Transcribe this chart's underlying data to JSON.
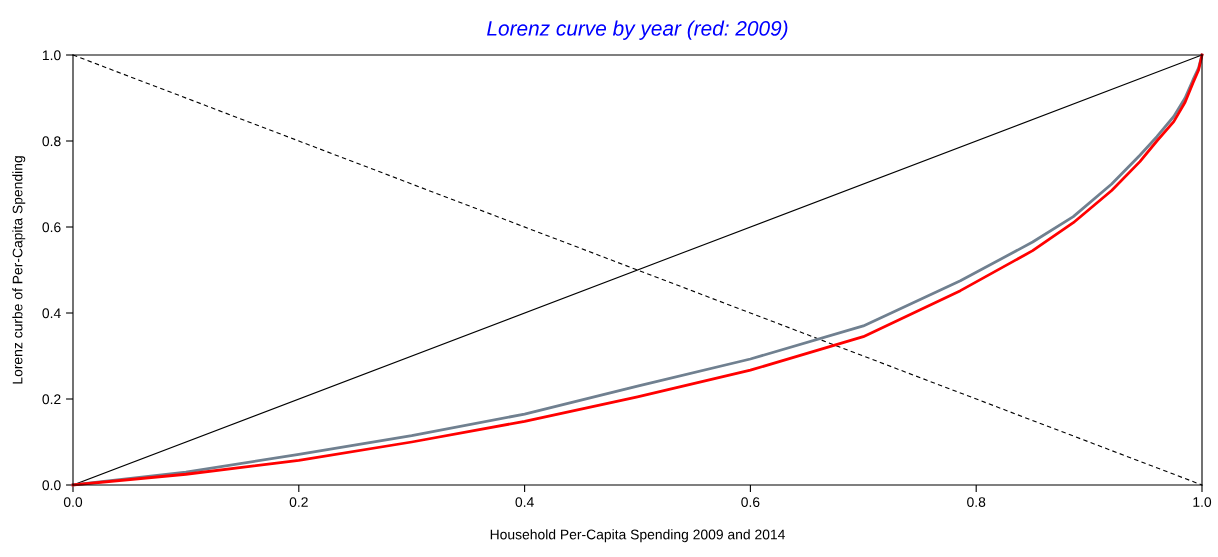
{
  "chart_data": {
    "type": "line",
    "title": "Lorenz curve by year (red: 2009)",
    "xlabel": "Household Per-Capita Spending 2009 and 2014",
    "ylabel": "Lorenz curbe of Per-Capita Spending",
    "xlim": [
      0,
      1
    ],
    "ylim": [
      0,
      1
    ],
    "xticks": [
      {
        "value": 0,
        "label": "0.0"
      },
      0.2,
      0.4,
      0.6,
      0.8,
      {
        "value": 1,
        "label": "1.0"
      }
    ],
    "yticks": [
      {
        "value": 0,
        "label": "0.0"
      },
      0.2,
      0.4,
      0.6,
      0.8,
      {
        "value": 1,
        "label": "1.0"
      }
    ],
    "grid": false,
    "legend": false,
    "marker": "none",
    "series": [
      {
        "color": "#000000",
        "line_style": "solid",
        "x": [
          0,
          1
        ],
        "values": [
          0,
          1
        ]
      },
      {
        "color": "#000000",
        "line_style": "dashed",
        "x": [
          0,
          1
        ],
        "values": [
          1,
          0
        ]
      },
      {
        "color": "#708090",
        "line_style": "solid",
        "x": [
          0,
          0.1,
          0.2,
          0.3,
          0.4,
          0.5,
          0.6,
          0.7,
          0.786,
          0.85,
          0.886,
          0.92,
          0.945,
          0.96,
          0.975,
          0.985,
          0.992,
          0.997,
          1.0
        ],
        "values": [
          0,
          0.03,
          0.071,
          0.115,
          0.165,
          0.23,
          0.293,
          0.37,
          0.475,
          0.565,
          0.624,
          0.7,
          0.767,
          0.81,
          0.857,
          0.9,
          0.942,
          0.97,
          1.0
        ]
      },
      {
        "color": "#ff0000",
        "line_style": "solid",
        "x": [
          0,
          0.1,
          0.2,
          0.3,
          0.4,
          0.5,
          0.6,
          0.7,
          0.786,
          0.85,
          0.886,
          0.92,
          0.945,
          0.96,
          0.975,
          0.985,
          0.992,
          0.997,
          1.0
        ],
        "values": [
          0,
          0.025,
          0.057,
          0.1,
          0.148,
          0.205,
          0.267,
          0.345,
          0.452,
          0.545,
          0.61,
          0.685,
          0.752,
          0.8,
          0.845,
          0.89,
          0.935,
          0.965,
          1.0
        ]
      }
    ]
  }
}
